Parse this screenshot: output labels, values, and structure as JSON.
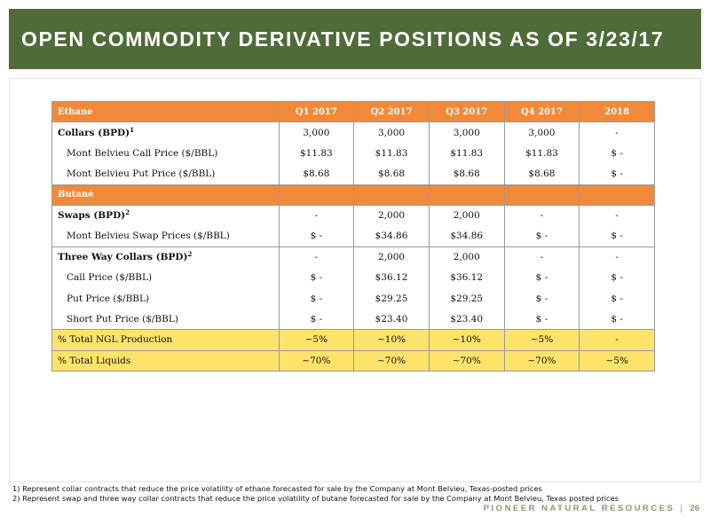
{
  "header": {
    "title": "OPEN COMMODITY DERIVATIVE POSITIONS AS OF 3/23/17"
  },
  "table": {
    "headers": [
      "Ethane",
      "Q1 2017",
      "Q2 2017",
      "Q3 2017",
      "Q4 2017",
      "2018"
    ],
    "butane_label": "Butane",
    "collars": {
      "label": "Collars (BPD)",
      "note": "1",
      "values": [
        "3,000",
        "3,000",
        "3,000",
        "3,000",
        "-"
      ]
    },
    "call_price": {
      "label": "Mont Belvieu Call Price ($/BBL)",
      "values": [
        "$11.83",
        "$11.83",
        "$11.83",
        "$11.83",
        "$ -"
      ]
    },
    "put_price": {
      "label": "Mont Belvieu Put Price ($/BBL)",
      "values": [
        "$8.68",
        "$8.68",
        "$8.68",
        "$8.68",
        "$ -"
      ]
    },
    "swaps": {
      "label": "Swaps (BPD)",
      "note": "2",
      "values": [
        "-",
        "2,000",
        "2,000",
        "-",
        "-"
      ]
    },
    "swap_prices": {
      "label": "Mont Belvieu Swap Prices ($/BBL)",
      "values": [
        "$ -",
        "$34.86",
        "$34.86",
        "$ -",
        "$ -"
      ]
    },
    "three_way": {
      "label": "Three Way Collars (BPD)",
      "note": "2",
      "values": [
        "-",
        "2,000",
        "2,000",
        "-",
        "-"
      ]
    },
    "tw_call": {
      "label": "Call Price ($/BBL)",
      "values": [
        "$ -",
        "$36.12",
        "$36.12",
        "$ -",
        "$ -"
      ]
    },
    "tw_put": {
      "label": "Put Price ($/BBL)",
      "values": [
        "$ -",
        "$29.25",
        "$29.25",
        "$ -",
        "$ -"
      ]
    },
    "tw_short_put": {
      "label": "Short Put Price ($/BBL)",
      "values": [
        "$ -",
        "$23.40",
        "$23.40",
        "$ -",
        "$ -"
      ]
    },
    "ngl_total": {
      "label": "% Total NGL Production",
      "values": [
        "~5%",
        "~10%",
        "~10%",
        "~5%",
        "-"
      ]
    },
    "liquids_total": {
      "label": "% Total Liquids",
      "values": [
        "~70%",
        "~70%",
        "~70%",
        "~70%",
        "~5%"
      ]
    }
  },
  "footnotes": {
    "note1": "1) Represent collar contracts that reduce the price volatility of ethane forecasted for sale by the Company at Mont Belvieu, Texas-posted prices",
    "note2": "2) Represent swap and three way collar contracts that reduce the price volatility of butane forecasted for sale by the Company at Mont Belvieu, Texas posted prices"
  },
  "footer": {
    "company": "PIONEER NATURAL RESOURCES",
    "separator": "|",
    "page": "26"
  }
}
